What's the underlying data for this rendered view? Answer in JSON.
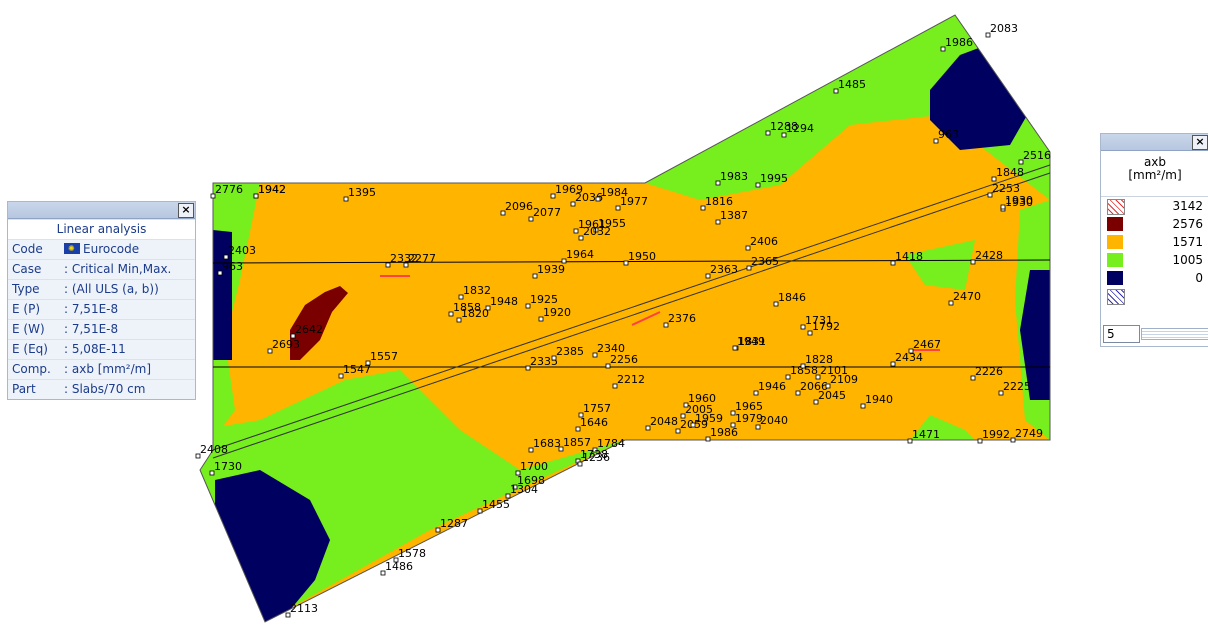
{
  "info_panel": {
    "header": "Linear analysis",
    "rows": [
      {
        "key": "Code",
        "value": "Eurocode"
      },
      {
        "key": "Case",
        "value": ": Critical Min,Max."
      },
      {
        "key": "Type",
        "value": ": (All ULS  (a, b))"
      },
      {
        "key": "E (P)",
        "value": ": 7,51E-8"
      },
      {
        "key": "E (W)",
        "value": ": 7,51E-8"
      },
      {
        "key": "E (Eq)",
        "value": ": 5,08E-11"
      },
      {
        "key": "Comp.",
        "value": ": axb [mm²/m]"
      },
      {
        "key": "Part",
        "value": ": Slabs/70 cm"
      }
    ],
    "close_label": "×"
  },
  "legend_panel": {
    "title_line1": "axb",
    "title_line2": "[mm²/m]",
    "close_label": "×",
    "levels": [
      {
        "value": "3142",
        "color": "#ffffff",
        "pattern": "hatch-red"
      },
      {
        "value": "2576",
        "color": "#7a0000"
      },
      {
        "value": "1571",
        "color": "#ffb400"
      },
      {
        "value": "1005",
        "color": "#77ee1e"
      },
      {
        "value": "0",
        "color": "#000060"
      },
      {
        "value": "",
        "color": "#ffffff",
        "pattern": "hatch-blue"
      }
    ],
    "steps_value": "5"
  },
  "plot": {
    "colors": {
      "high": "#7a0000",
      "mid": "#ffb400",
      "low": "#77ee1e",
      "min": "#000060"
    },
    "labels": [
      "2776",
      "1942",
      "1395",
      "2403",
      "2332",
      "2277",
      "963",
      "2642",
      "2693",
      "1557",
      "1547",
      "2096",
      "2077",
      "1969",
      "2036",
      "1984",
      "1977",
      "1961",
      "1955",
      "2032",
      "1964",
      "1939",
      "1950",
      "1832",
      "1858",
      "1948",
      "1925",
      "1920",
      "1820",
      "2340",
      "2376",
      "2256",
      "2212",
      "2335",
      "2385",
      "1757",
      "1646",
      "1700",
      "1857",
      "1784",
      "1738",
      "1683",
      "1236",
      "1698",
      "1304",
      "1455",
      "1287",
      "1578",
      "1486",
      "2113",
      "2408",
      "1730",
      "2005",
      "2059",
      "1959",
      "2048",
      "1960",
      "1986",
      "1965",
      "1979",
      "2040",
      "1946",
      "2066",
      "2045",
      "1858",
      "2101",
      "2109",
      "1828",
      "1940",
      "1471",
      "1992",
      "2749",
      "2225",
      "2226",
      "2434",
      "2467",
      "1731",
      "1792",
      "1846",
      "2428",
      "2470",
      "1418",
      "1930",
      "2253",
      "1848",
      "2516",
      "1986",
      "2083",
      "963",
      "1816",
      "1387",
      "1485",
      "1294",
      "1288",
      "2363",
      "2406",
      "1983",
      "1995",
      "2365",
      "1831",
      "1949",
      "1930",
      "1942"
    ]
  }
}
